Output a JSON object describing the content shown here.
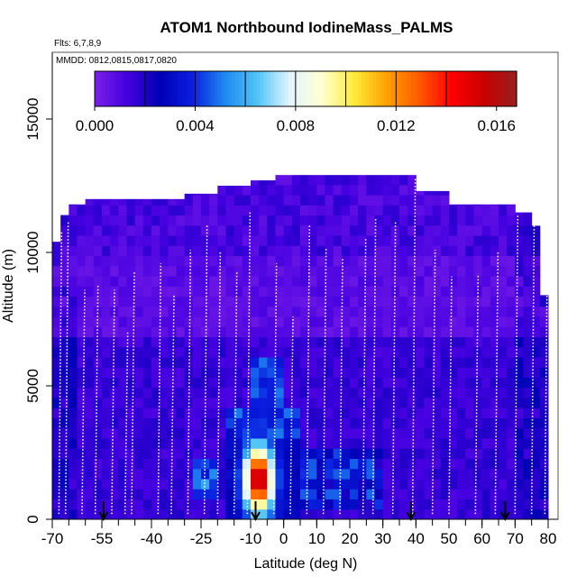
{
  "chart_data": {
    "type": "heatmap",
    "title": "ATOM1 Northbound IodineMass_PALMS",
    "flights_label": "Flts: 6,7,8,9",
    "dates_label": "MMDD: 0812,0815,0817,0820",
    "xlabel": "Latitude (deg N)",
    "ylabel": "Altitude (m)",
    "xlim": [
      -70,
      83
    ],
    "ylim": [
      0,
      17500
    ],
    "x_ticks": [
      -70,
      -55,
      -40,
      -25,
      -10,
      0,
      10,
      20,
      30,
      40,
      50,
      60,
      70,
      80
    ],
    "y_ticks": [
      0,
      5000,
      10000,
      15000
    ],
    "colorbar": {
      "min": 0.0,
      "max": 0.0168,
      "ticks": [
        0.0,
        0.004,
        0.008,
        0.012,
        0.016
      ],
      "tick_labels": [
        "0.000",
        "0.004",
        "0.008",
        "0.012",
        "0.016"
      ],
      "palette": [
        "#7b1fe8",
        "#4400e0",
        "#0000b4",
        "#0a1ee0",
        "#1e88f0",
        "#4fc3f7",
        "#e1f5fe",
        "#ffffd0",
        "#ffeb3b",
        "#ffa000",
        "#ff5a00",
        "#ff0000",
        "#c80000",
        "#9a2020"
      ]
    },
    "colors": {
      "plot_border": "#555555",
      "profile_line": "#ffffff",
      "marker": "#000000"
    },
    "profiles": [
      {
        "lat": -68,
        "alt_top": 10800
      },
      {
        "lat": -66,
        "alt_top": 11200
      },
      {
        "lat": -61,
        "alt_top": 8600
      },
      {
        "lat": -57,
        "alt_top": 8800
      },
      {
        "lat": -52,
        "alt_top": 8600
      },
      {
        "lat": -48,
        "alt_top": 7000
      },
      {
        "lat": -46,
        "alt_top": 9300
      },
      {
        "lat": -38,
        "alt_top": 9600
      },
      {
        "lat": -34,
        "alt_top": 8400
      },
      {
        "lat": -29,
        "alt_top": 10100
      },
      {
        "lat": -24,
        "alt_top": 11000
      },
      {
        "lat": -20,
        "alt_top": 10000
      },
      {
        "lat": -15,
        "alt_top": 9300
      },
      {
        "lat": -11,
        "alt_top": 11500
      },
      {
        "lat": -3,
        "alt_top": 9600
      },
      {
        "lat": 2,
        "alt_top": 7600
      },
      {
        "lat": 7,
        "alt_top": 11000
      },
      {
        "lat": 12,
        "alt_top": 10200
      },
      {
        "lat": 17,
        "alt_top": 9800
      },
      {
        "lat": 24,
        "alt_top": 10500
      },
      {
        "lat": 27,
        "alt_top": 11300
      },
      {
        "lat": 33,
        "alt_top": 11200
      },
      {
        "lat": 39,
        "alt_top": 12800
      },
      {
        "lat": 45,
        "alt_top": 10100
      },
      {
        "lat": 50,
        "alt_top": 9100
      },
      {
        "lat": 58,
        "alt_top": 9200
      },
      {
        "lat": 64,
        "alt_top": 10000
      },
      {
        "lat": 70,
        "alt_top": 11400
      },
      {
        "lat": 75,
        "alt_top": 11700
      },
      {
        "lat": 79,
        "alt_top": 10800
      }
    ],
    "markers": [
      -54.5,
      -8.5,
      38.5,
      67
    ]
  }
}
